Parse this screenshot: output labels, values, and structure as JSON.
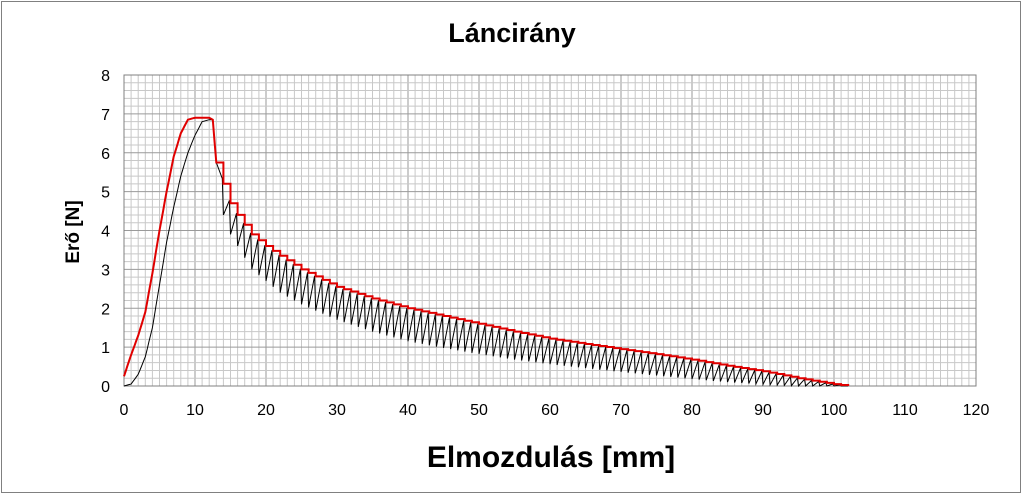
{
  "chart_data": {
    "type": "line",
    "title": "Láncirány",
    "xlabel": "Elmozdulás [mm]",
    "ylabel": "Erő [N]",
    "xlim": [
      0,
      120
    ],
    "ylim": [
      0,
      8
    ],
    "x_ticks": [
      0,
      10,
      20,
      30,
      40,
      50,
      60,
      70,
      80,
      90,
      100,
      110,
      120
    ],
    "y_ticks": [
      0,
      1,
      2,
      3,
      4,
      5,
      6,
      7,
      8
    ],
    "grid": true,
    "grid_minor_x_step": 1,
    "grid_minor_y_step": 0.2,
    "legend": "none",
    "series": [
      {
        "color": "#000000",
        "style": "oscillating",
        "x": [
          0,
          1,
          2,
          3,
          4,
          5,
          6,
          7,
          8,
          9,
          10,
          11,
          12,
          12.5,
          13,
          13.5,
          14,
          15,
          16,
          18,
          20,
          22,
          25,
          30,
          35,
          40,
          45,
          50,
          55,
          60,
          65,
          70,
          75,
          80,
          85,
          90,
          95,
          100,
          102
        ],
        "y_upper": [
          0,
          0.05,
          0.3,
          0.75,
          1.5,
          2.6,
          3.7,
          4.6,
          5.4,
          6.0,
          6.45,
          6.8,
          6.85,
          6.85,
          5.75,
          5.65,
          5.2,
          4.7,
          4.4,
          3.9,
          3.6,
          3.35,
          3.0,
          2.55,
          2.25,
          2.0,
          1.8,
          1.6,
          1.4,
          1.22,
          1.08,
          0.95,
          0.82,
          0.68,
          0.52,
          0.38,
          0.2,
          0.05,
          0.0
        ],
        "y_lower": [
          0,
          0.05,
          0.3,
          0.75,
          1.5,
          2.6,
          3.7,
          4.6,
          5.4,
          6.0,
          6.45,
          6.8,
          6.85,
          6.85,
          5.3,
          4.9,
          4.4,
          3.9,
          3.6,
          3.0,
          2.7,
          2.4,
          2.1,
          1.7,
          1.4,
          1.15,
          0.98,
          0.82,
          0.68,
          0.56,
          0.46,
          0.36,
          0.27,
          0.18,
          0.1,
          0.04,
          0.0,
          0.0,
          0.0
        ],
        "oscillation_period_mm": 1.0
      },
      {
        "color": "#e00000",
        "style": "stepped-envelope",
        "x": [
          0,
          1,
          2,
          3,
          4,
          5,
          6,
          7,
          8,
          9,
          10,
          11,
          12,
          12.5,
          13,
          13.5,
          14,
          15,
          16,
          18,
          20,
          22,
          25,
          30,
          35,
          40,
          45,
          50,
          55,
          60,
          65,
          70,
          75,
          80,
          85,
          90,
          95,
          100,
          102
        ],
        "y": [
          0.25,
          0.8,
          1.3,
          1.9,
          2.9,
          4.0,
          5.0,
          5.9,
          6.5,
          6.85,
          6.9,
          6.9,
          6.9,
          6.85,
          5.75,
          5.7,
          5.2,
          4.7,
          4.4,
          3.9,
          3.6,
          3.35,
          3.0,
          2.55,
          2.25,
          2.0,
          1.8,
          1.6,
          1.4,
          1.22,
          1.08,
          0.95,
          0.82,
          0.68,
          0.52,
          0.38,
          0.2,
          0.05,
          0.0
        ]
      }
    ]
  }
}
